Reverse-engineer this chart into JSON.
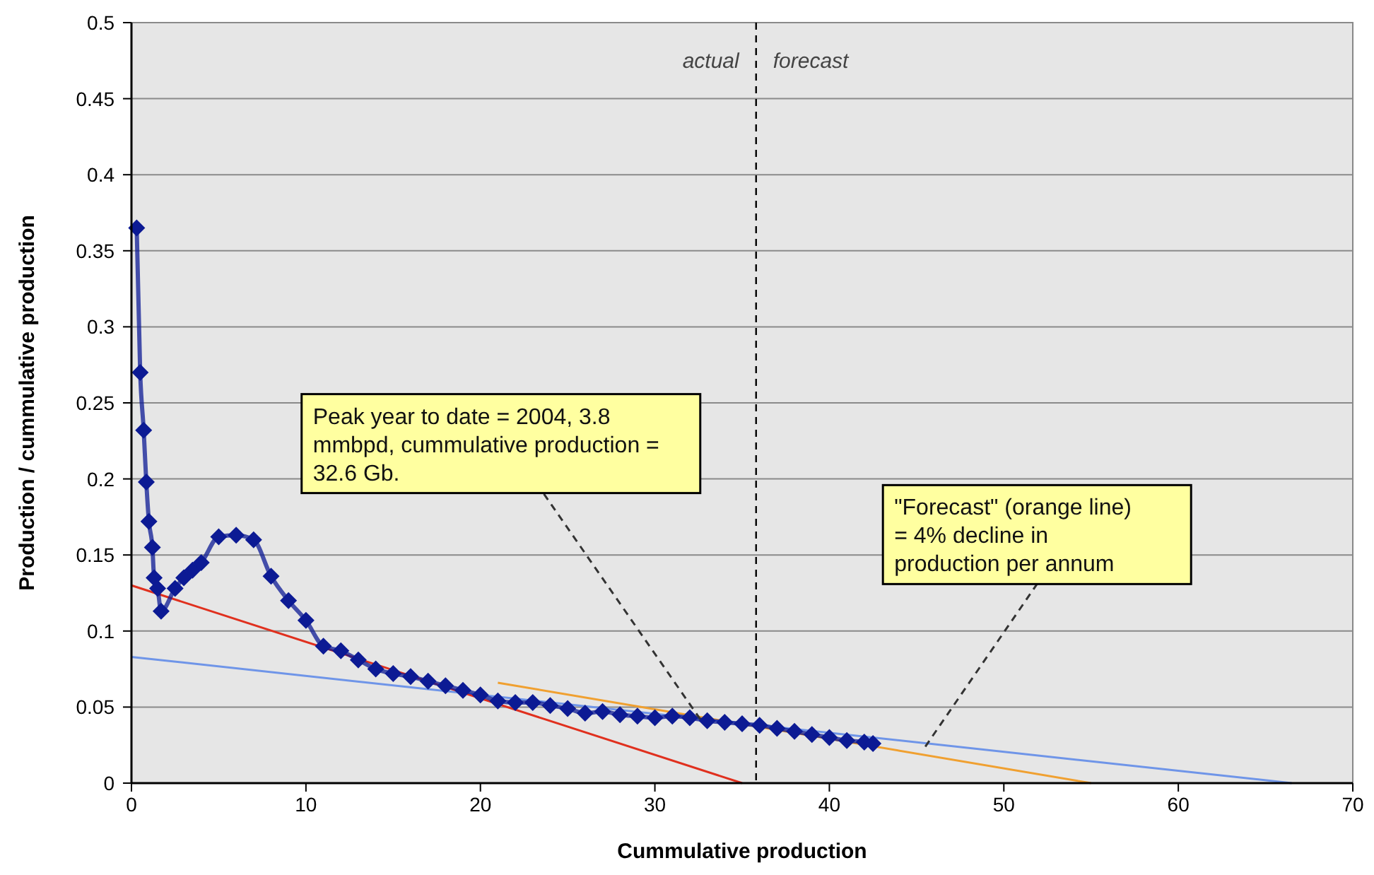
{
  "chart_data": {
    "type": "line",
    "xlabel": "Cummulative production",
    "ylabel": "Production / cummulative production",
    "xlim": [
      0,
      70
    ],
    "xticks": [
      0,
      10,
      20,
      30,
      40,
      50,
      60,
      70
    ],
    "ylim": [
      0,
      0.5
    ],
    "yticks": [
      0,
      0.05,
      0.1,
      0.15,
      0.2,
      0.25,
      0.3,
      0.35,
      0.4,
      0.45,
      0.5
    ],
    "grid": "y",
    "series": [
      {
        "color": "#0c1a94",
        "marker": "diamond",
        "x": [
          0.3,
          0.5,
          0.7,
          0.85,
          1.0,
          1.2,
          1.3,
          1.5,
          1.7,
          2.5,
          3,
          3.5,
          4,
          5,
          6,
          7,
          8,
          9,
          10,
          11,
          12,
          13,
          14,
          15,
          16,
          17,
          18,
          19,
          20,
          21,
          22,
          23,
          24,
          25,
          26,
          27,
          28,
          29,
          30,
          31,
          32,
          33,
          34,
          35,
          36,
          37,
          38,
          39,
          40,
          41,
          42,
          42.5
        ],
        "values": [
          0.365,
          0.27,
          0.232,
          0.198,
          0.172,
          0.155,
          0.135,
          0.128,
          0.113,
          0.128,
          0.135,
          0.14,
          0.145,
          0.162,
          0.163,
          0.16,
          0.136,
          0.12,
          0.107,
          0.09,
          0.087,
          0.081,
          0.075,
          0.072,
          0.07,
          0.067,
          0.064,
          0.061,
          0.058,
          0.054,
          0.053,
          0.053,
          0.051,
          0.049,
          0.046,
          0.047,
          0.045,
          0.044,
          0.043,
          0.044,
          0.043,
          0.041,
          0.04,
          0.039,
          0.038,
          0.036,
          0.034,
          0.032,
          0.03,
          0.028,
          0.027,
          0.026
        ]
      },
      {
        "color": "#e0301e",
        "marker": "none",
        "x": [
          0,
          35
        ],
        "values": [
          0.13,
          0
        ]
      },
      {
        "color": "#6f95e8",
        "marker": "none",
        "x": [
          0,
          66.5
        ],
        "values": [
          0.083,
          0
        ]
      },
      {
        "color": "#f0a030",
        "marker": "none",
        "x": [
          21,
          55
        ],
        "values": [
          0.066,
          0
        ]
      }
    ],
    "ref_lines": [
      {
        "axis": "x",
        "value": 35.8,
        "line_style": "dashed",
        "color": "#000000"
      }
    ],
    "annotations": [
      "actual",
      "forecast",
      {
        "text": "Peak year to date = 2004, 3.8 mmbpd, cummulative production = 32.6 Gb.",
        "x": 32.6,
        "y": 0.042
      },
      {
        "text": "\"Forecast\" (orange line) = 4% decline in production per annum",
        "x": 45.5,
        "y": 0.024
      }
    ]
  }
}
